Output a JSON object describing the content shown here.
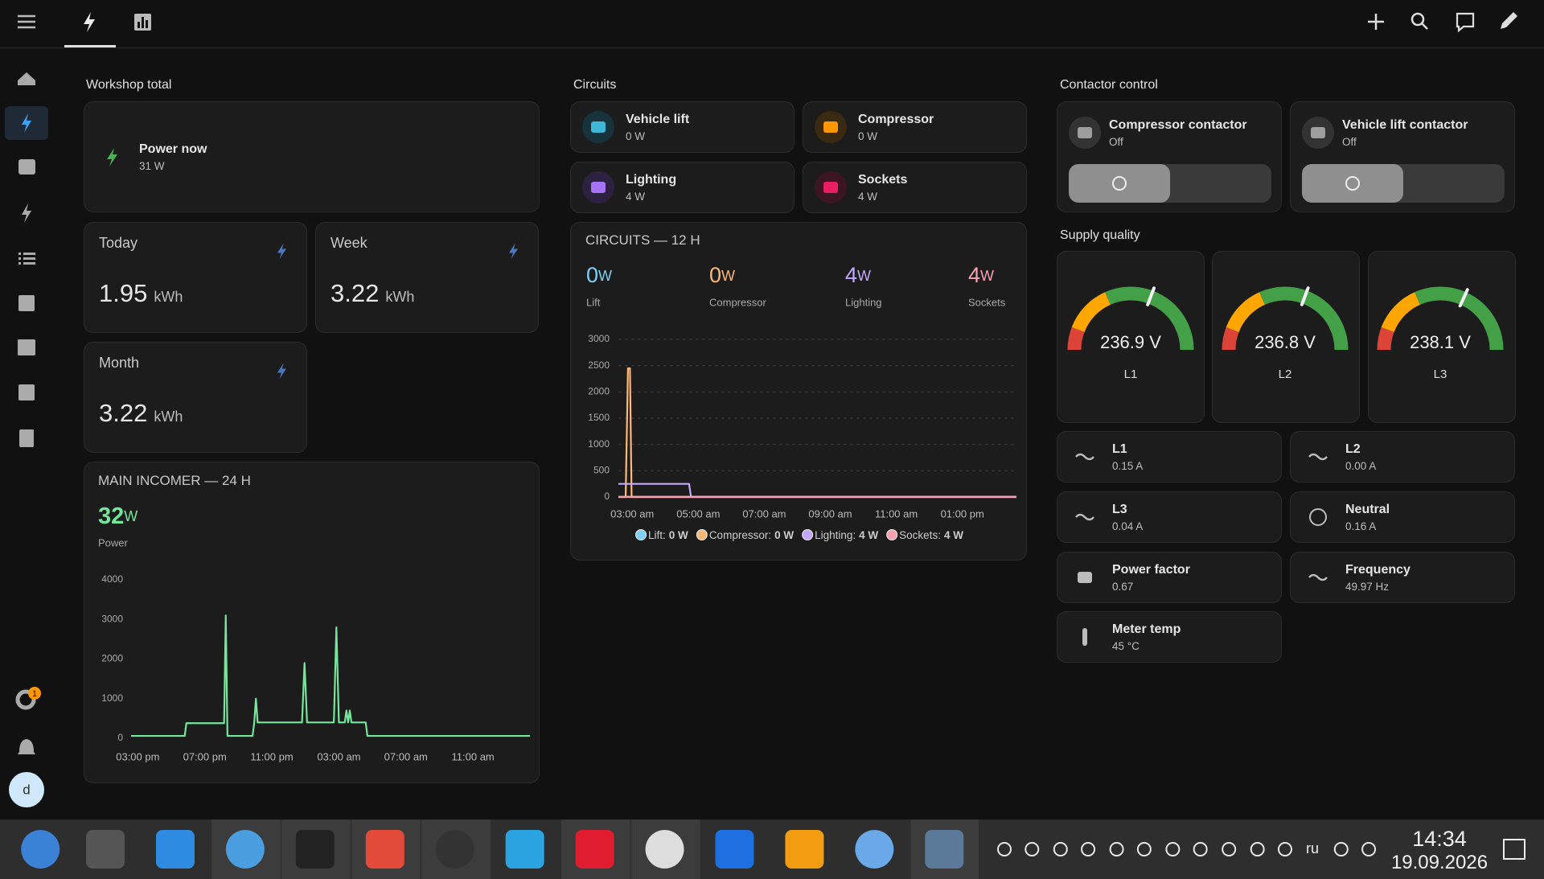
{
  "sidebar": {
    "badge": "1",
    "avatar": "d"
  },
  "sections": {
    "workshop": "Workshop total",
    "circuits": "Circuits",
    "contactor": "Contactor control",
    "supply": "Supply quality"
  },
  "power_now": {
    "name": "Power now",
    "state": "31 W"
  },
  "energy": [
    {
      "name": "Today",
      "value": 1.95,
      "unit": "kWh"
    },
    {
      "name": "Week",
      "value": 3.22,
      "unit": "kWh"
    },
    {
      "name": "Month",
      "value": 3.22,
      "unit": "kWh"
    }
  ],
  "circuit_tiles": [
    {
      "name": "Vehicle lift",
      "state": "0 W"
    },
    {
      "name": "Compressor",
      "state": "0 W"
    },
    {
      "name": "Lighting",
      "state": "4 W"
    },
    {
      "name": "Sockets",
      "state": "4 W"
    }
  ],
  "contactors": [
    {
      "name": "Compressor contactor",
      "state": "Off"
    },
    {
      "name": "Vehicle lift contactor",
      "state": "Off"
    }
  ],
  "gauges": [
    {
      "label": "L1",
      "value": 236.9,
      "value_label": "236.9 V",
      "range": [
        200,
        260
      ],
      "segments": [
        {
          "from": 200,
          "to": 207,
          "color": "#db4437"
        },
        {
          "from": 207,
          "to": 222,
          "color": "#ffa600"
        },
        {
          "from": 222,
          "to": 260,
          "color": "#43a047"
        }
      ]
    },
    {
      "label": "L2",
      "value": 236.8,
      "value_label": "236.8 V",
      "range": [
        200,
        260
      ],
      "segments": [
        {
          "from": 200,
          "to": 207,
          "color": "#db4437"
        },
        {
          "from": 207,
          "to": 222,
          "color": "#ffa600"
        },
        {
          "from": 222,
          "to": 260,
          "color": "#43a047"
        }
      ]
    },
    {
      "label": "L3",
      "value": 238.1,
      "value_label": "238.1 V",
      "range": [
        200,
        260
      ],
      "segments": [
        {
          "from": 200,
          "to": 207,
          "color": "#db4437"
        },
        {
          "from": 207,
          "to": 222,
          "color": "#ffa600"
        },
        {
          "from": 222,
          "to": 260,
          "color": "#43a047"
        }
      ]
    }
  ],
  "sensors": [
    {
      "name": "L1",
      "state": "0.15 A"
    },
    {
      "name": "L2",
      "state": "0.00 A"
    },
    {
      "name": "L3",
      "state": "0.04 A"
    },
    {
      "name": "Neutral",
      "state": "0.16 A"
    },
    {
      "name": "Power factor",
      "state": "0.67"
    },
    {
      "name": "Frequency",
      "state": "49.97 Hz"
    },
    {
      "name": "Meter temp",
      "state": "45 °C"
    }
  ],
  "chart_data": [
    {
      "type": "line",
      "title": "MAIN INCOMER — 24 H",
      "grid": false,
      "xlim": [
        -0.4,
        23.4
      ],
      "xticks": [
        {
          "value": 0,
          "label": "03:00 pm"
        },
        {
          "value": 4,
          "label": "07:00 pm"
        },
        {
          "value": 8,
          "label": "11:00 pm"
        },
        {
          "value": 12,
          "label": "03:00 am"
        },
        {
          "value": 16,
          "label": "07:00 am"
        },
        {
          "value": 20,
          "label": "11:00 am"
        }
      ],
      "ylim": [
        0,
        4000
      ],
      "yticks": [
        0,
        1000,
        2000,
        3000,
        4000
      ],
      "series": [
        {
          "name": "Power",
          "current": 32,
          "unit": "W",
          "color": "#74e79a",
          "x": [
            -0.4,
            2.8,
            2.9,
            5.15,
            5.25,
            5.35,
            6.85,
            6.95,
            7.05,
            7.15,
            9.8,
            9.95,
            10.1,
            11.7,
            11.85,
            12.0,
            12.35,
            12.45,
            12.55,
            12.65,
            12.75,
            12.85,
            13.6,
            13.7,
            23.4
          ],
          "values": [
            60,
            60,
            380,
            380,
            3100,
            60,
            60,
            400,
            1000,
            400,
            400,
            1900,
            400,
            400,
            2800,
            400,
            400,
            700,
            400,
            700,
            400,
            400,
            400,
            60,
            60
          ]
        }
      ]
    },
    {
      "type": "line",
      "title": "CIRCUITS — 12 H",
      "grid": true,
      "xlim": [
        -0.42,
        11.64
      ],
      "xticks": [
        {
          "value": 0,
          "label": "03:00 am"
        },
        {
          "value": 2,
          "label": "05:00 am"
        },
        {
          "value": 4,
          "label": "07:00 am"
        },
        {
          "value": 6,
          "label": "09:00 am"
        },
        {
          "value": 8,
          "label": "11:00 am"
        },
        {
          "value": 10,
          "label": "01:00 pm"
        }
      ],
      "ylim": [
        0,
        3000
      ],
      "yticks": [
        0,
        500,
        1000,
        1500,
        2000,
        2500,
        3000
      ],
      "series": [
        {
          "name": "Lift",
          "current": 0,
          "unit": "W",
          "legend_name": "Lift:",
          "legend_value": "0 W",
          "color": "#7dcff5",
          "x": [
            -0.42,
            11.64
          ],
          "values": [
            0,
            0
          ]
        },
        {
          "name": "Compressor",
          "current": 0,
          "unit": "W",
          "legend_name": "Compressor:",
          "legend_value": "0 W",
          "color": "#fdb877",
          "x": [
            -0.42,
            -0.2,
            -0.13,
            -0.07,
            -0.02,
            11.64
          ],
          "values": [
            0,
            0,
            2450,
            2450,
            0,
            0
          ]
        },
        {
          "name": "Lighting",
          "current": 4,
          "unit": "W",
          "legend_name": "Lighting:",
          "legend_value": "4 W",
          "color": "#c4a8fb",
          "x": [
            -0.42,
            1.72,
            1.78,
            11.64
          ],
          "values": [
            250,
            250,
            4,
            4
          ]
        },
        {
          "name": "Sockets",
          "current": 4,
          "unit": "W",
          "legend_name": "Sockets:",
          "legend_value": "4 W",
          "color": "#f7a1b0",
          "x": [
            -0.42,
            11.64
          ],
          "values": [
            4,
            4
          ]
        }
      ]
    }
  ],
  "taskbar": {
    "lang": "ru",
    "time": "14:34",
    "date": "19.09.2026"
  }
}
